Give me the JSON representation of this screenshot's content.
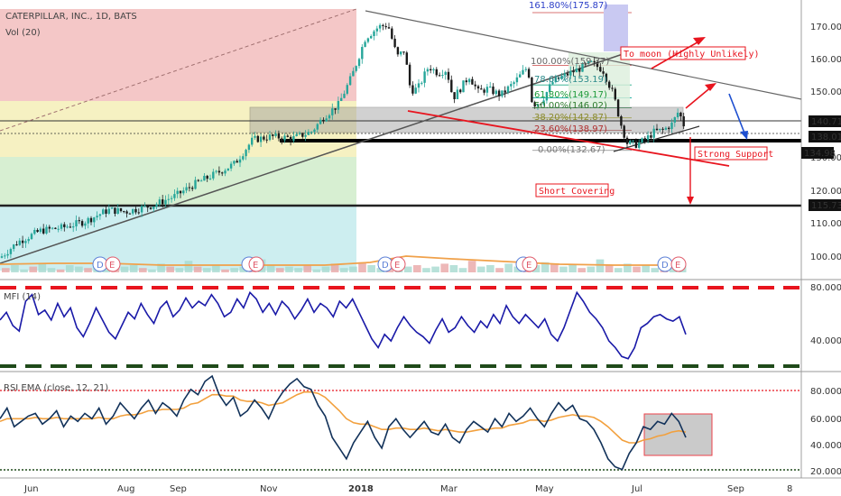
{
  "header": {
    "title": "CATERPILLAR, INC., 1D, BATS",
    "volume_label": "Vol (20)",
    "mfi_label": "MFI (14)",
    "rsi_label": "RSI EMA (close, 12, 21)"
  },
  "colors": {
    "candle_up": "#26a69a",
    "candle_down": "#1a1a1a",
    "fib_red": "#f4c7c7",
    "fib_yellow": "#f6f1c2",
    "fib_green": "#d7efd2",
    "fib_cyan": "#cdeef0",
    "indicator_line": "#1a1aa8",
    "rsi_line": "#12325a",
    "ema_line": "#f2a03d",
    "annotation_red": "#e8141e",
    "annotation_blue": "#1e4fd0",
    "volume_ma": "#f0a14a"
  },
  "chart_data": [
    {
      "type": "candlestick",
      "title": "CATERPILLAR, INC., 1D, BATS",
      "x_ticks": [
        "Jun",
        "Aug",
        "Sep",
        "Nov",
        "2018",
        "Mar",
        "May",
        "Jul",
        "Sep",
        "8"
      ],
      "y_ticks": [
        "170.00",
        "160.00",
        "150.00",
        "140.00",
        "130.00",
        "120.00",
        "110.00",
        "100.00"
      ],
      "ylim": [
        95,
        177
      ],
      "price_path": [
        [
          0,
          99
        ],
        [
          20,
          104
        ],
        [
          45,
          107.5
        ],
        [
          70,
          108.5
        ],
        [
          95,
          110.5
        ],
        [
          120,
          114
        ],
        [
          140,
          113.5
        ],
        [
          170,
          115.5
        ],
        [
          195,
          118.5
        ],
        [
          215,
          122
        ],
        [
          240,
          125.5
        ],
        [
          260,
          128.5
        ],
        [
          280,
          136
        ],
        [
          300,
          137
        ],
        [
          325,
          136.5
        ],
        [
          345,
          138.5
        ],
        [
          360,
          143.5
        ],
        [
          375,
          147
        ],
        [
          390,
          156
        ],
        [
          405,
          168
        ],
        [
          420,
          171.5
        ],
        [
          430,
          172
        ],
        [
          440,
          162
        ],
        [
          448,
          164
        ],
        [
          455,
          151.5
        ],
        [
          463,
          152
        ],
        [
          475,
          159
        ],
        [
          485,
          157
        ],
        [
          495,
          158
        ],
        [
          502,
          149
        ],
        [
          510,
          152
        ],
        [
          520,
          156
        ],
        [
          530,
          151
        ],
        [
          540,
          152
        ],
        [
          555,
          150
        ],
        [
          570,
          154
        ],
        [
          585,
          159
        ],
        [
          590,
          147
        ],
        [
          600,
          148
        ],
        [
          612,
          154
        ],
        [
          625,
          156
        ],
        [
          640,
          158
        ],
        [
          655,
          160
        ],
        [
          668,
          158
        ],
        [
          680,
          150
        ],
        [
          688,
          141
        ],
        [
          695,
          135
        ],
        [
          705,
          134.5
        ],
        [
          715,
          136
        ],
        [
          725,
          138.5
        ],
        [
          735,
          139
        ],
        [
          745,
          141
        ],
        [
          752,
          145
        ],
        [
          760,
          139
        ]
      ],
      "annotations": [
        "161.80%(175.87)",
        "100.00%(159.37)",
        "78.60%(153.19)",
        "61.80%(149.17)",
        "50.00%(146.02)",
        "38.20%(142.87)",
        "23.60%(138.97)",
        "0.00%(132.67)",
        "To moon (Highly Unlikely)",
        "Strong Support",
        "Short Covering"
      ],
      "price_labels": [
        "140.71",
        "138.01",
        "134.98",
        "115.73"
      ],
      "event_markers": [
        "D",
        "E"
      ]
    },
    {
      "type": "line",
      "title": "MFI (14)",
      "y_ticks": [
        "80.0000",
        "40.0000"
      ],
      "ylim": [
        10,
        90
      ],
      "overbought": 80,
      "oversold": 20,
      "series": [
        {
          "values": [
            55,
            62,
            50,
            45,
            72,
            78,
            60,
            64,
            55,
            70,
            58,
            66,
            48,
            40,
            52,
            66,
            55,
            44,
            38,
            50,
            62,
            56,
            70,
            60,
            52,
            66,
            72,
            58,
            64,
            75,
            66,
            72,
            68,
            78,
            70,
            58,
            62,
            74,
            66,
            80,
            74,
            62,
            70,
            60,
            72,
            66,
            56,
            64,
            74,
            62,
            70,
            66,
            58,
            72,
            66,
            74,
            62,
            50,
            38,
            30,
            42,
            36,
            48,
            58,
            50,
            44,
            40,
            34,
            46,
            56,
            44,
            48,
            58,
            50,
            44,
            54,
            48,
            60,
            52,
            68,
            58,
            52,
            60,
            54,
            48,
            56,
            42,
            36,
            48,
            64,
            80,
            72,
            62,
            56,
            48,
            36,
            30,
            22,
            20,
            30,
            48,
            52,
            58,
            60,
            56,
            54,
            58,
            42
          ]
        }
      ]
    },
    {
      "type": "line",
      "title": "RSI EMA (close, 12, 21)",
      "y_ticks": [
        "80.0000",
        "60.0000",
        "40.0000",
        "20.0000"
      ],
      "ylim": [
        15,
        92
      ],
      "overbought": 80,
      "oversold": 20,
      "series": [
        {
          "values": [
            58,
            66,
            52,
            56,
            60,
            62,
            54,
            58,
            64,
            52,
            60,
            56,
            62,
            58,
            66,
            54,
            60,
            70,
            64,
            58,
            66,
            72,
            62,
            70,
            66,
            60,
            72,
            80,
            76,
            86,
            90,
            76,
            68,
            74,
            60,
            64,
            72,
            66,
            58,
            70,
            78,
            84,
            88,
            82,
            80,
            68,
            60,
            44,
            36,
            28,
            40,
            48,
            56,
            44,
            36,
            52,
            58,
            50,
            44,
            50,
            56,
            48,
            46,
            54,
            44,
            40,
            50,
            56,
            52,
            48,
            58,
            52,
            62,
            56,
            60,
            66,
            58,
            52,
            62,
            70,
            64,
            68,
            58,
            56,
            50,
            40,
            28,
            22,
            20,
            32,
            40,
            52,
            50,
            56,
            54,
            62,
            56,
            44
          ]
        },
        {
          "values": [
            56,
            58,
            58,
            58,
            58,
            59,
            58,
            58,
            59,
            58,
            58,
            58,
            58,
            58,
            59,
            58,
            58,
            60,
            61,
            61,
            62,
            64,
            64,
            65,
            65,
            65,
            66,
            69,
            70,
            73,
            76,
            76,
            75,
            75,
            72,
            71,
            71,
            70,
            68,
            69,
            70,
            73,
            76,
            78,
            78,
            77,
            74,
            69,
            64,
            58,
            55,
            54,
            54,
            52,
            50,
            50,
            51,
            51,
            50,
            50,
            51,
            50,
            49,
            50,
            49,
            48,
            48,
            49,
            50,
            50,
            51,
            51,
            53,
            54,
            55,
            57,
            57,
            56,
            57,
            59,
            60,
            61,
            60,
            60,
            59,
            56,
            52,
            47,
            42,
            40,
            40,
            42,
            43,
            45,
            46,
            48,
            49,
            48
          ]
        }
      ]
    },
    {
      "type": "bar",
      "title": "Vol (20)",
      "series": [
        {
          "values": [
            3,
            5,
            2,
            4,
            6,
            3,
            2,
            5,
            4,
            3,
            7,
            2,
            3,
            4,
            5,
            3,
            2,
            6,
            4,
            3,
            8,
            4,
            3,
            5,
            2,
            3,
            4,
            6,
            9,
            5,
            3,
            4,
            3,
            5,
            2,
            4,
            6,
            3,
            4,
            7,
            5,
            3,
            10,
            6,
            4,
            5,
            3,
            4,
            6,
            5,
            3,
            8,
            4,
            5,
            3,
            6,
            4,
            3,
            5,
            7,
            6,
            4,
            5,
            3,
            4,
            9,
            5,
            3,
            6,
            4,
            5,
            3,
            4,
            6,
            5
          ]
        }
      ]
    }
  ]
}
